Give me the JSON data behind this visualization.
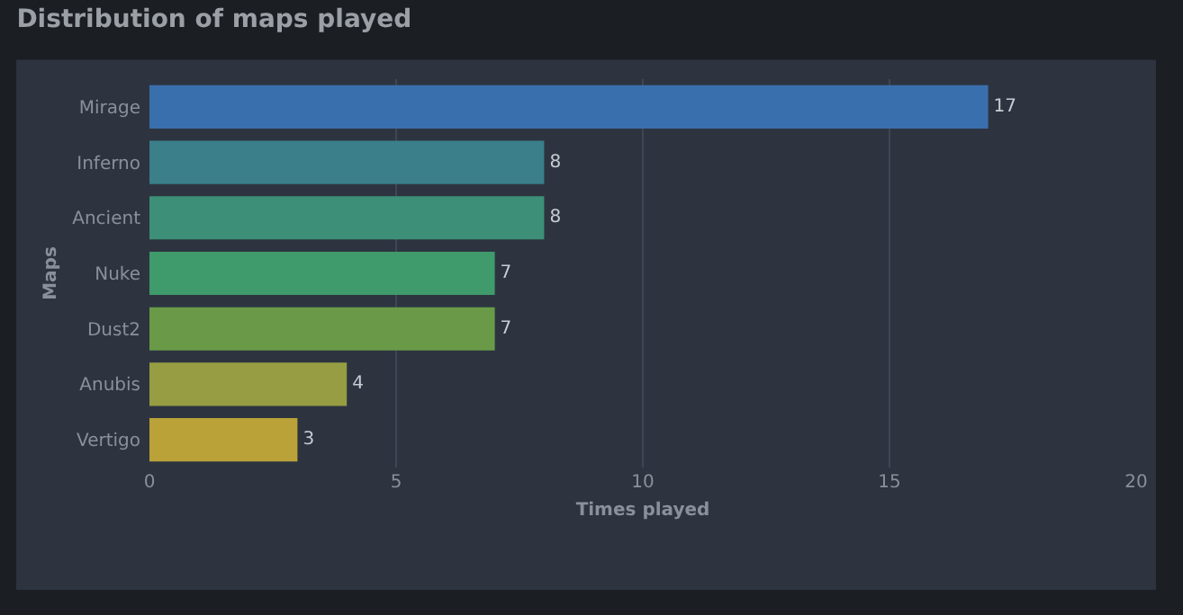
{
  "chart_data": {
    "type": "bar",
    "orientation": "horizontal",
    "title": "Distribution of maps played",
    "xlabel": "Times played",
    "ylabel": "Maps",
    "categories": [
      "Mirage",
      "Inferno",
      "Ancient",
      "Nuke",
      "Dust2",
      "Anubis",
      "Vertigo"
    ],
    "values": [
      17,
      8,
      8,
      7,
      7,
      4,
      3
    ],
    "colors": [
      "#3a6fae",
      "#3a7f8a",
      "#3d8f78",
      "#3f9a6c",
      "#6a9a48",
      "#979d42",
      "#bba238"
    ],
    "xlim": [
      0,
      20
    ],
    "xticks": [
      0,
      5,
      10,
      15,
      20
    ],
    "grid": "x",
    "data_labels": true
  }
}
